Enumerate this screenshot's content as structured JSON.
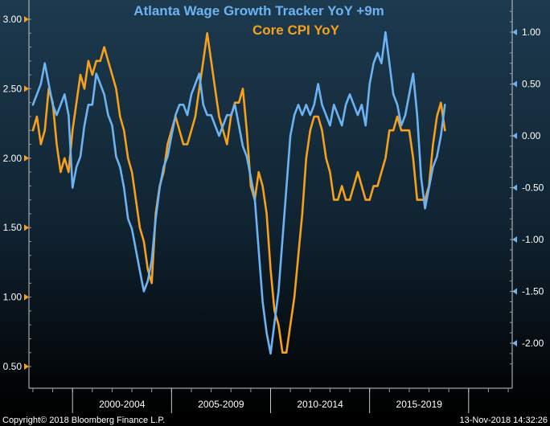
{
  "colors": {
    "wage_series": "#6db3f2",
    "cpi_series": "#f5a11c",
    "axis_text": "#ffffff",
    "axis_tick_left": "#f5a11c",
    "axis_tick_right": "#6db3f2"
  },
  "chart_data": {
    "type": "line",
    "title": "Atlanta Wage Growth Tracker YoY +9m",
    "subtitle": "Core CPI YoY",
    "x_categories": [
      "2000-2004",
      "2005-2009",
      "2010-2014",
      "2015-2019"
    ],
    "left_axis": {
      "ylim": [
        0.4,
        3.1
      ],
      "ticks": [
        "3.00",
        "2.50",
        "2.00",
        "1.50",
        "1.00",
        "0.50"
      ]
    },
    "right_axis": {
      "ylim": [
        -2.3,
        1.3
      ],
      "ticks": [
        "1.00",
        "0.50",
        "0.00",
        "-0.50",
        "-1.00",
        "-1.50",
        "-2.00"
      ]
    },
    "grid": false,
    "series": [
      {
        "name": "Core CPI YoY",
        "axis": "left",
        "x": [
          1998.0,
          1998.2,
          1998.4,
          1998.6,
          1998.8,
          1999.0,
          1999.2,
          1999.4,
          1999.6,
          1999.8,
          2000.0,
          2000.2,
          2000.4,
          2000.6,
          2000.8,
          2001.0,
          2001.2,
          2001.4,
          2001.6,
          2001.8,
          2002.0,
          2002.2,
          2002.4,
          2002.6,
          2002.8,
          2003.0,
          2003.2,
          2003.4,
          2003.6,
          2003.8,
          2004.0,
          2004.2,
          2004.4,
          2004.6,
          2004.8,
          2005.0,
          2005.2,
          2005.4,
          2005.6,
          2005.8,
          2006.0,
          2006.2,
          2006.4,
          2006.6,
          2006.8,
          2007.0,
          2007.2,
          2007.4,
          2007.6,
          2007.8,
          2008.0,
          2008.2,
          2008.4,
          2008.6,
          2008.8,
          2009.0,
          2009.2,
          2009.4,
          2009.6,
          2009.8,
          2010.0,
          2010.2,
          2010.4,
          2010.6,
          2010.8,
          2011.0,
          2011.2,
          2011.4,
          2011.6,
          2011.8,
          2012.0,
          2012.2,
          2012.4,
          2012.6,
          2012.8,
          2013.0,
          2013.2,
          2013.4,
          2013.6,
          2013.8,
          2014.0,
          2014.2,
          2014.4,
          2014.6,
          2014.8,
          2015.0,
          2015.2,
          2015.4,
          2015.6,
          2015.8,
          2016.0,
          2016.2,
          2016.4,
          2016.6,
          2016.8,
          2017.0,
          2017.2,
          2017.4,
          2017.6,
          2017.8,
          2018.0,
          2018.2,
          2018.4,
          2018.6,
          2018.8
        ],
        "values": [
          2.2,
          2.3,
          2.1,
          2.2,
          2.5,
          2.4,
          2.1,
          1.9,
          2.0,
          1.9,
          2.2,
          2.4,
          2.6,
          2.5,
          2.7,
          2.6,
          2.7,
          2.7,
          2.8,
          2.7,
          2.6,
          2.5,
          2.3,
          2.2,
          2.0,
          1.9,
          1.7,
          1.5,
          1.4,
          1.2,
          1.1,
          1.6,
          1.8,
          1.9,
          2.1,
          2.2,
          2.3,
          2.2,
          2.1,
          2.1,
          2.2,
          2.3,
          2.5,
          2.7,
          2.9,
          2.7,
          2.5,
          2.3,
          2.2,
          2.1,
          2.3,
          2.4,
          2.4,
          2.5,
          2.2,
          1.8,
          1.7,
          1.9,
          1.8,
          1.6,
          1.2,
          0.9,
          0.8,
          0.6,
          0.6,
          0.8,
          1.0,
          1.3,
          1.6,
          2.0,
          2.2,
          2.3,
          2.3,
          2.2,
          2.0,
          1.9,
          1.7,
          1.7,
          1.8,
          1.7,
          1.7,
          1.8,
          1.9,
          1.8,
          1.7,
          1.7,
          1.8,
          1.8,
          1.9,
          2.0,
          2.2,
          2.2,
          2.3,
          2.2,
          2.2,
          2.2,
          2.0,
          1.7,
          1.7,
          1.7,
          1.8,
          2.1,
          2.3,
          2.4,
          2.2
        ]
      },
      {
        "name": "Atlanta Wage Growth Tracker YoY +9m",
        "axis": "right",
        "x": [
          1998.0,
          1998.2,
          1998.4,
          1998.6,
          1998.8,
          1999.0,
          1999.2,
          1999.4,
          1999.6,
          1999.8,
          2000.0,
          2000.2,
          2000.4,
          2000.6,
          2000.8,
          2001.0,
          2001.2,
          2001.4,
          2001.6,
          2001.8,
          2002.0,
          2002.2,
          2002.4,
          2002.6,
          2002.8,
          2003.0,
          2003.2,
          2003.4,
          2003.6,
          2003.8,
          2004.0,
          2004.2,
          2004.4,
          2004.6,
          2004.8,
          2005.0,
          2005.2,
          2005.4,
          2005.6,
          2005.8,
          2006.0,
          2006.2,
          2006.4,
          2006.6,
          2006.8,
          2007.0,
          2007.2,
          2007.4,
          2007.6,
          2007.8,
          2008.0,
          2008.2,
          2008.4,
          2008.6,
          2008.8,
          2009.0,
          2009.2,
          2009.4,
          2009.6,
          2009.8,
          2010.0,
          2010.2,
          2010.4,
          2010.6,
          2010.8,
          2011.0,
          2011.2,
          2011.4,
          2011.6,
          2011.8,
          2012.0,
          2012.2,
          2012.4,
          2012.6,
          2012.8,
          2013.0,
          2013.2,
          2013.4,
          2013.6,
          2013.8,
          2014.0,
          2014.2,
          2014.4,
          2014.6,
          2014.8,
          2015.0,
          2015.2,
          2015.4,
          2015.6,
          2015.8,
          2016.0,
          2016.2,
          2016.4,
          2016.6,
          2016.8,
          2017.0,
          2017.2,
          2017.4,
          2017.6,
          2017.8,
          2018.0,
          2018.2,
          2018.4,
          2018.6,
          2018.8
        ],
        "values": [
          0.3,
          0.4,
          0.5,
          0.7,
          0.5,
          0.3,
          0.2,
          0.3,
          0.4,
          0.2,
          -0.5,
          -0.3,
          -0.2,
          0.1,
          0.3,
          0.3,
          0.6,
          0.5,
          0.4,
          0.2,
          0.1,
          -0.2,
          -0.3,
          -0.5,
          -0.8,
          -0.9,
          -1.1,
          -1.3,
          -1.5,
          -1.4,
          -1.2,
          -0.8,
          -0.5,
          -0.3,
          -0.2,
          0.0,
          0.2,
          0.3,
          0.3,
          0.2,
          0.4,
          0.5,
          0.6,
          0.3,
          0.2,
          0.2,
          0.1,
          0.0,
          0.1,
          0.2,
          0.2,
          0.3,
          0.1,
          -0.1,
          -0.2,
          -0.4,
          -0.6,
          -1.1,
          -1.6,
          -1.9,
          -2.1,
          -1.8,
          -1.5,
          -1.0,
          -0.5,
          0.0,
          0.2,
          0.3,
          0.2,
          0.3,
          0.2,
          0.3,
          0.5,
          0.3,
          0.2,
          0.1,
          0.3,
          0.2,
          0.1,
          0.3,
          0.4,
          0.3,
          0.2,
          0.3,
          0.1,
          0.5,
          0.7,
          0.8,
          0.7,
          1.0,
          0.7,
          0.4,
          0.3,
          0.1,
          0.2,
          0.4,
          0.6,
          0.2,
          -0.4,
          -0.7,
          -0.5,
          -0.3,
          -0.2,
          0.0,
          0.3
        ]
      }
    ],
    "footer": {
      "copyright": "Copyright© 2018 Bloomberg Finance L.P.",
      "timestamp": "13-Nov-2018 14:32:26"
    }
  }
}
